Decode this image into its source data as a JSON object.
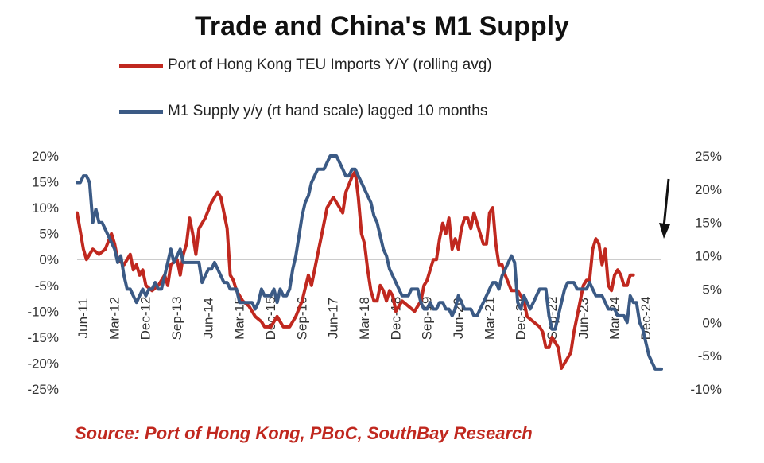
{
  "chart_data": {
    "type": "line",
    "title": "Trade and China's M1 Supply",
    "x_tick_labels": [
      "Jun-11",
      "Mar-12",
      "Dec-12",
      "Sep-13",
      "Jun-14",
      "Mar-15",
      "Dec-15",
      "Sep-16",
      "Jun-17",
      "Mar-18",
      "Dec-18",
      "Sep-19",
      "Jun-20",
      "Mar-21",
      "Dec-21",
      "Sep-22",
      "Jun-23",
      "Mar-24",
      "Dec-24"
    ],
    "x_range_months": [
      0,
      166
    ],
    "y_left": {
      "min": -25,
      "max": 20,
      "step": 5,
      "unit": "%"
    },
    "y_right": {
      "min": -10,
      "max": 25,
      "step": 5,
      "unit": "%"
    },
    "series": [
      {
        "name": "Port of Hong Kong TEU Imports Y/Y (rolling avg)",
        "axis": "left",
        "color": "#c0281f",
        "points": [
          [
            0,
            9
          ],
          [
            2,
            2
          ],
          [
            3,
            0
          ],
          [
            5,
            2
          ],
          [
            7,
            1
          ],
          [
            9,
            2
          ],
          [
            11,
            5
          ],
          [
            12,
            3
          ],
          [
            13,
            0
          ],
          [
            15,
            -1
          ],
          [
            17,
            1
          ],
          [
            18,
            -2
          ],
          [
            19,
            -1
          ],
          [
            20,
            -3
          ],
          [
            21,
            -2
          ],
          [
            22,
            -5
          ],
          [
            24,
            -6
          ],
          [
            26,
            -5
          ],
          [
            28,
            -3
          ],
          [
            29,
            -5
          ],
          [
            30,
            -1
          ],
          [
            32,
            0
          ],
          [
            33,
            -3
          ],
          [
            34,
            1
          ],
          [
            35,
            3
          ],
          [
            36,
            8
          ],
          [
            37,
            5
          ],
          [
            38,
            1
          ],
          [
            39,
            6
          ],
          [
            41,
            8
          ],
          [
            43,
            11
          ],
          [
            45,
            13
          ],
          [
            46,
            12
          ],
          [
            48,
            6
          ],
          [
            49,
            -3
          ],
          [
            50,
            -4
          ],
          [
            51,
            -6
          ],
          [
            53,
            -8
          ],
          [
            55,
            -9
          ],
          [
            57,
            -11
          ],
          [
            59,
            -12
          ],
          [
            60,
            -13
          ],
          [
            62,
            -13
          ],
          [
            64,
            -11
          ],
          [
            66,
            -13
          ],
          [
            68,
            -13
          ],
          [
            70,
            -11
          ],
          [
            72,
            -8
          ],
          [
            74,
            -3
          ],
          [
            75,
            -5
          ],
          [
            76,
            -2
          ],
          [
            77,
            1
          ],
          [
            78,
            4
          ],
          [
            79,
            7
          ],
          [
            80,
            10
          ],
          [
            82,
            12
          ],
          [
            84,
            10
          ],
          [
            85,
            9
          ],
          [
            86,
            13
          ],
          [
            88,
            16
          ],
          [
            89,
            17
          ],
          [
            90,
            12
          ],
          [
            91,
            5
          ],
          [
            92,
            3
          ],
          [
            93,
            -2
          ],
          [
            94,
            -6
          ],
          [
            95,
            -8
          ],
          [
            96,
            -8
          ],
          [
            97,
            -5
          ],
          [
            98,
            -6
          ],
          [
            99,
            -8
          ],
          [
            100,
            -6
          ],
          [
            101,
            -7
          ],
          [
            102,
            -10
          ],
          [
            104,
            -8
          ],
          [
            106,
            -9
          ],
          [
            108,
            -10
          ],
          [
            110,
            -8
          ],
          [
            111,
            -5
          ],
          [
            112,
            -4
          ],
          [
            113,
            -2
          ],
          [
            114,
            0
          ],
          [
            115,
            0
          ],
          [
            116,
            4
          ],
          [
            117,
            7
          ],
          [
            118,
            5
          ],
          [
            119,
            8
          ],
          [
            120,
            2
          ],
          [
            121,
            4
          ],
          [
            122,
            2
          ],
          [
            123,
            6
          ],
          [
            124,
            8
          ],
          [
            125,
            8
          ],
          [
            126,
            6
          ],
          [
            127,
            9
          ],
          [
            128,
            7
          ],
          [
            129,
            5
          ],
          [
            130,
            3
          ],
          [
            131,
            3
          ],
          [
            132,
            9
          ],
          [
            133,
            10
          ],
          [
            134,
            3
          ],
          [
            135,
            -1
          ],
          [
            136,
            -1
          ],
          [
            137,
            -3
          ],
          [
            139,
            -6
          ],
          [
            141,
            -6
          ],
          [
            143,
            -8
          ],
          [
            144,
            -11
          ],
          [
            146,
            -12
          ],
          [
            148,
            -13
          ],
          [
            149,
            -14
          ],
          [
            150,
            -17
          ],
          [
            151,
            -17
          ],
          [
            152,
            -15
          ],
          [
            154,
            -17
          ],
          [
            155,
            -21
          ],
          [
            156,
            -20
          ],
          [
            157,
            -19
          ],
          [
            158,
            -18
          ],
          [
            159,
            -14
          ],
          [
            160,
            -11
          ],
          [
            161,
            -8
          ],
          [
            162,
            -5
          ],
          [
            163,
            -4
          ],
          [
            164,
            -4
          ],
          [
            165,
            2
          ],
          [
            166,
            4
          ],
          [
            167,
            3
          ],
          [
            168,
            -1
          ],
          [
            169,
            2
          ],
          [
            170,
            -5
          ],
          [
            171,
            -6
          ],
          [
            172,
            -3
          ],
          [
            173,
            -2
          ],
          [
            174,
            -3
          ],
          [
            175,
            -5
          ],
          [
            176,
            -5
          ],
          [
            177,
            -3
          ],
          [
            178,
            -3
          ]
        ]
      },
      {
        "name": "M1 Supply y/y (rt hand scale) lagged 10 months",
        "axis": "right",
        "color": "#3b5a85",
        "points": [
          [
            0,
            21
          ],
          [
            1,
            21
          ],
          [
            2,
            22
          ],
          [
            3,
            22
          ],
          [
            4,
            21
          ],
          [
            5,
            15
          ],
          [
            6,
            17
          ],
          [
            7,
            15
          ],
          [
            8,
            15
          ],
          [
            9,
            14
          ],
          [
            10,
            13
          ],
          [
            11,
            12
          ],
          [
            12,
            11
          ],
          [
            13,
            9
          ],
          [
            14,
            10
          ],
          [
            15,
            7
          ],
          [
            16,
            5
          ],
          [
            17,
            5
          ],
          [
            18,
            4
          ],
          [
            19,
            3
          ],
          [
            20,
            4
          ],
          [
            21,
            5
          ],
          [
            22,
            4
          ],
          [
            23,
            5
          ],
          [
            24,
            5
          ],
          [
            25,
            6
          ],
          [
            26,
            5
          ],
          [
            27,
            5
          ],
          [
            28,
            7
          ],
          [
            29,
            9
          ],
          [
            30,
            11
          ],
          [
            31,
            9
          ],
          [
            32,
            10
          ],
          [
            33,
            11
          ],
          [
            34,
            9
          ],
          [
            35,
            9
          ],
          [
            36,
            9
          ],
          [
            37,
            9
          ],
          [
            38,
            9
          ],
          [
            39,
            9
          ],
          [
            40,
            6
          ],
          [
            41,
            7
          ],
          [
            42,
            8
          ],
          [
            43,
            8
          ],
          [
            44,
            9
          ],
          [
            45,
            8
          ],
          [
            46,
            7
          ],
          [
            47,
            6
          ],
          [
            48,
            6
          ],
          [
            49,
            5
          ],
          [
            50,
            5
          ],
          [
            51,
            5
          ],
          [
            52,
            3
          ],
          [
            53,
            3
          ],
          [
            54,
            3
          ],
          [
            55,
            3
          ],
          [
            56,
            3
          ],
          [
            57,
            2
          ],
          [
            58,
            3
          ],
          [
            59,
            5
          ],
          [
            60,
            4
          ],
          [
            61,
            4
          ],
          [
            62,
            4
          ],
          [
            63,
            5
          ],
          [
            64,
            3
          ],
          [
            65,
            5
          ],
          [
            66,
            4
          ],
          [
            67,
            4
          ],
          [
            68,
            5
          ],
          [
            69,
            8
          ],
          [
            70,
            10
          ],
          [
            71,
            13
          ],
          [
            72,
            16
          ],
          [
            73,
            18
          ],
          [
            74,
            19
          ],
          [
            75,
            21
          ],
          [
            76,
            22
          ],
          [
            77,
            23
          ],
          [
            78,
            23
          ],
          [
            79,
            23
          ],
          [
            80,
            24
          ],
          [
            81,
            25
          ],
          [
            82,
            25
          ],
          [
            83,
            25
          ],
          [
            84,
            24
          ],
          [
            85,
            23
          ],
          [
            86,
            22
          ],
          [
            87,
            22
          ],
          [
            88,
            23
          ],
          [
            89,
            23
          ],
          [
            90,
            22
          ],
          [
            91,
            21
          ],
          [
            92,
            20
          ],
          [
            93,
            19
          ],
          [
            94,
            18
          ],
          [
            95,
            16
          ],
          [
            96,
            15
          ],
          [
            97,
            13
          ],
          [
            98,
            11
          ],
          [
            99,
            10
          ],
          [
            100,
            8
          ],
          [
            101,
            7
          ],
          [
            102,
            6
          ],
          [
            103,
            5
          ],
          [
            104,
            4
          ],
          [
            105,
            4
          ],
          [
            106,
            4
          ],
          [
            107,
            5
          ],
          [
            108,
            5
          ],
          [
            109,
            5
          ],
          [
            110,
            3
          ],
          [
            111,
            2
          ],
          [
            112,
            2
          ],
          [
            113,
            3
          ],
          [
            114,
            2
          ],
          [
            115,
            2
          ],
          [
            116,
            3
          ],
          [
            117,
            3
          ],
          [
            118,
            2
          ],
          [
            119,
            2
          ],
          [
            120,
            1
          ],
          [
            121,
            2
          ],
          [
            122,
            4
          ],
          [
            123,
            3
          ],
          [
            124,
            2
          ],
          [
            125,
            2
          ],
          [
            126,
            2
          ],
          [
            127,
            1
          ],
          [
            128,
            1
          ],
          [
            129,
            2
          ],
          [
            130,
            3
          ],
          [
            131,
            4
          ],
          [
            132,
            5
          ],
          [
            133,
            6
          ],
          [
            134,
            6
          ],
          [
            135,
            5
          ],
          [
            136,
            7
          ],
          [
            137,
            8
          ],
          [
            138,
            9
          ],
          [
            139,
            10
          ],
          [
            140,
            9
          ],
          [
            141,
            3
          ],
          [
            142,
            2
          ],
          [
            143,
            4
          ],
          [
            144,
            3
          ],
          [
            145,
            2
          ],
          [
            146,
            3
          ],
          [
            147,
            4
          ],
          [
            148,
            5
          ],
          [
            149,
            5
          ],
          [
            150,
            5
          ],
          [
            151,
            1
          ],
          [
            152,
            -1
          ],
          [
            153,
            -1
          ],
          [
            154,
            1
          ],
          [
            155,
            3
          ],
          [
            156,
            5
          ],
          [
            157,
            6
          ],
          [
            158,
            6
          ],
          [
            159,
            6
          ],
          [
            160,
            5
          ],
          [
            161,
            5
          ],
          [
            162,
            5
          ],
          [
            163,
            5
          ],
          [
            164,
            6
          ],
          [
            165,
            5
          ],
          [
            166,
            4
          ],
          [
            167,
            4
          ],
          [
            168,
            4
          ],
          [
            169,
            3
          ],
          [
            170,
            2
          ],
          [
            171,
            2
          ],
          [
            172,
            2
          ],
          [
            173,
            1
          ],
          [
            174,
            1
          ],
          [
            175,
            1
          ],
          [
            176,
            0
          ],
          [
            177,
            4
          ],
          [
            178,
            3
          ],
          [
            179,
            3
          ],
          [
            180,
            0
          ],
          [
            181,
            -1
          ],
          [
            182,
            -3
          ],
          [
            183,
            -5
          ],
          [
            184,
            -6
          ],
          [
            185,
            -7
          ],
          [
            186,
            -7
          ],
          [
            187,
            -7
          ]
        ]
      }
    ],
    "annotations": [
      "down-arrow near right axis indicating decline"
    ]
  },
  "legend": {
    "red_label": "Port of Hong Kong TEU Imports Y/Y (rolling avg)",
    "blue_label": "M1 Supply y/y (rt hand scale) lagged 10 months"
  },
  "source": "Source: Port of Hong Kong, PBoC, SouthBay Research",
  "colors": {
    "red": "#c0281f",
    "blue": "#3b5a85",
    "source_text": "#c0281f"
  }
}
